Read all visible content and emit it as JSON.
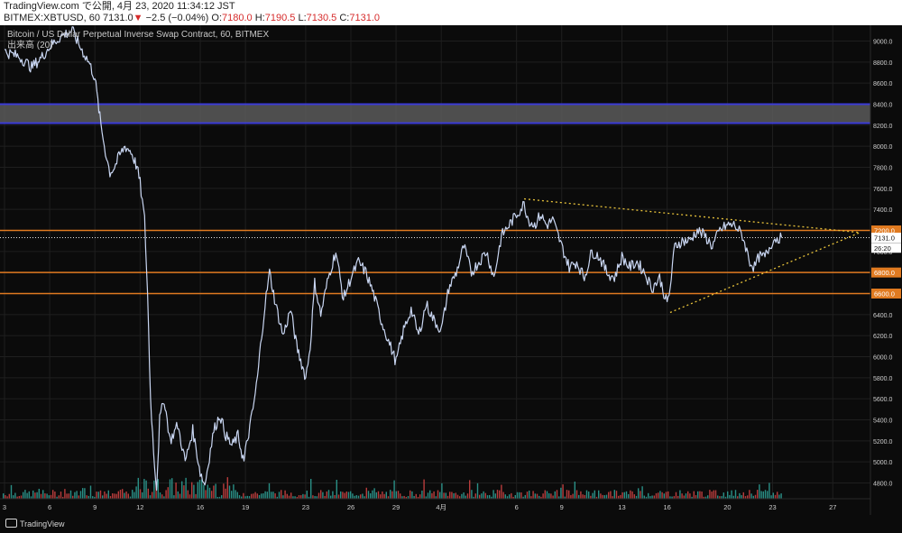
{
  "header": {
    "line1": "TradingView.com で公開, 4月 23, 2020 11:34:12 JST",
    "symbol_line": "BITMEX:XBTUSD, 60 7131.0",
    "change_arrow": "▼",
    "change": "−2.5 (−0.04%)",
    "o_label": " O:",
    "o_value": "7180.0",
    "h_label": " H:",
    "h_value": "7190.5",
    "l_label": " L:",
    "l_value": "7130.5",
    "c_label": " C:",
    "c_value": "7131.0"
  },
  "legend": {
    "title": "Bitcoin / US Dollar Perpetual Inverse Swap Contract, 60, BITMEX",
    "volume": "出来高 (20)"
  },
  "footer": {
    "brand": "TradingView"
  },
  "colors": {
    "background": "#0b0b0b",
    "grid": "#1f1f1f",
    "price_line": "#c9d6f2",
    "blue_level": "#3b3bd6",
    "zone_fill": "#5a5a5a",
    "orange_level": "#e07a20",
    "trend_line": "#e6c13a",
    "vol_up": "#2a8f86",
    "vol_down": "#b83c3c"
  },
  "chart_data": {
    "type": "line",
    "title": "Bitcoin / US Dollar Perpetual Inverse Swap Contract, 60, BITMEX",
    "xlabel": "",
    "ylabel": "",
    "ylim": [
      4650,
      9150
    ],
    "grid": true,
    "y_ticks": [
      "4800.0",
      "5000.0",
      "5200.0",
      "5400.0",
      "5600.0",
      "5800.0",
      "6000.0",
      "6200.0",
      "6400.0",
      "6600.0",
      "6800.0",
      "7000.0",
      "7200.0",
      "7400.0",
      "7600.0",
      "7800.0",
      "8000.0",
      "8200.0",
      "8400.0",
      "8600.0",
      "8800.0",
      "9000.0"
    ],
    "x_labels": [
      {
        "day": 3,
        "label": "3"
      },
      {
        "day": 6,
        "label": "6"
      },
      {
        "day": 9,
        "label": "9"
      },
      {
        "day": 12,
        "label": "12"
      },
      {
        "day": 16,
        "label": "16"
      },
      {
        "day": 19,
        "label": "19"
      },
      {
        "day": 23,
        "label": "23"
      },
      {
        "day": 26,
        "label": "26"
      },
      {
        "day": 29,
        "label": "29"
      },
      {
        "day": 32,
        "label": "4月"
      },
      {
        "day": 37,
        "label": "6"
      },
      {
        "day": 40,
        "label": "9"
      },
      {
        "day": 44,
        "label": "13"
      },
      {
        "day": 47,
        "label": "16"
      },
      {
        "day": 51,
        "label": "20"
      },
      {
        "day": 54,
        "label": "23"
      },
      {
        "day": 58,
        "label": "27"
      }
    ],
    "x_range": [
      3,
      60.2
    ],
    "series": [
      {
        "name": "",
        "x": [
          3,
          4,
          4.8,
          5.5,
          6,
          6.8,
          7.5,
          8,
          8.6,
          9,
          9.4,
          9.7,
          10,
          10.3,
          10.6,
          11,
          11.4,
          11.8,
          12,
          12.3,
          12.5,
          12.7,
          12.9,
          13.1,
          13.3,
          13.6,
          14,
          14.5,
          15,
          15.5,
          16,
          16.3,
          16.6,
          16.9,
          17.3,
          17.7,
          18.1,
          18.5,
          18.9,
          19,
          19.5,
          19.8,
          20,
          20.3,
          20.6,
          21,
          21.5,
          22,
          22.4,
          22.8,
          23,
          23.3,
          23.6,
          24,
          24.5,
          25,
          25.5,
          26,
          26.5,
          27,
          27.5,
          28,
          28.5,
          29,
          29.5,
          30,
          30.5,
          31,
          31.5,
          32,
          32.5,
          33,
          33.5,
          34,
          34.5,
          35,
          35.5,
          36,
          36.5,
          37,
          37.5,
          37.8,
          38.2,
          38.6,
          39,
          39.4,
          40,
          40.5,
          41,
          41.5,
          42,
          42.5,
          43,
          43.5,
          44,
          44.5,
          45,
          45.5,
          46,
          46.5,
          47,
          47.2,
          47.5,
          48,
          48.5,
          49,
          49.5,
          50,
          50.5,
          51,
          51.5,
          52,
          52.5,
          52.8,
          53.1,
          53.5,
          54,
          54.3,
          54.6
        ],
        "values": [
          8900,
          8850,
          8750,
          8850,
          8950,
          9050,
          9100,
          8950,
          8800,
          8650,
          8200,
          7950,
          7750,
          7800,
          7900,
          8000,
          7950,
          7800,
          7650,
          7300,
          6600,
          5600,
          5100,
          4750,
          5400,
          5600,
          5200,
          5350,
          5000,
          5300,
          4900,
          4780,
          5050,
          5300,
          5450,
          5250,
          5150,
          5250,
          5000,
          5100,
          5500,
          5800,
          6100,
          6500,
          6800,
          6500,
          6200,
          6450,
          6100,
          5900,
          5800,
          6100,
          6700,
          6400,
          6750,
          7000,
          6550,
          6750,
          6900,
          6800,
          6600,
          6350,
          6150,
          5950,
          6250,
          6450,
          6200,
          6500,
          6350,
          6250,
          6650,
          6800,
          7050,
          6800,
          6900,
          7000,
          6750,
          7150,
          7250,
          7350,
          7450,
          7300,
          7250,
          7350,
          7250,
          7300,
          7050,
          6850,
          6900,
          6750,
          7000,
          6950,
          6800,
          6750,
          6950,
          6850,
          6900,
          6800,
          6650,
          6750,
          6500,
          6650,
          7050,
          7100,
          7100,
          7200,
          7150,
          7050,
          7200,
          7250,
          7250,
          7150,
          6900,
          6850,
          6950,
          6950,
          7100,
          7130,
          7131
        ]
      }
    ],
    "levels": [
      {
        "price": 8400,
        "kind": "blue"
      },
      {
        "price": 8220,
        "kind": "blue"
      },
      {
        "price": 7200,
        "kind": "orange"
      },
      {
        "price": 6800,
        "kind": "orange"
      },
      {
        "price": 6600,
        "kind": "orange"
      }
    ],
    "zone": {
      "from": 8220,
      "to": 8400
    },
    "trendlines": [
      {
        "points": [
          [
            37.5,
            7500
          ],
          [
            59.8,
            7180
          ]
        ]
      },
      {
        "points": [
          [
            47.2,
            6420
          ],
          [
            59.8,
            7180
          ]
        ]
      }
    ],
    "price_labels": [
      {
        "price": 7200,
        "label": "7200.0",
        "kind": "orange"
      },
      {
        "price": 7131,
        "label": "7131.0",
        "kind": "last"
      },
      {
        "price": 7035,
        "label": "26:20",
        "kind": "timer"
      },
      {
        "price": 6800,
        "label": "6800.0",
        "kind": "orange"
      },
      {
        "price": 6600,
        "label": "6600.0",
        "kind": "orange"
      }
    ],
    "last_price": 7131.0,
    "volume": {
      "name": "出来高 (20)"
    }
  }
}
